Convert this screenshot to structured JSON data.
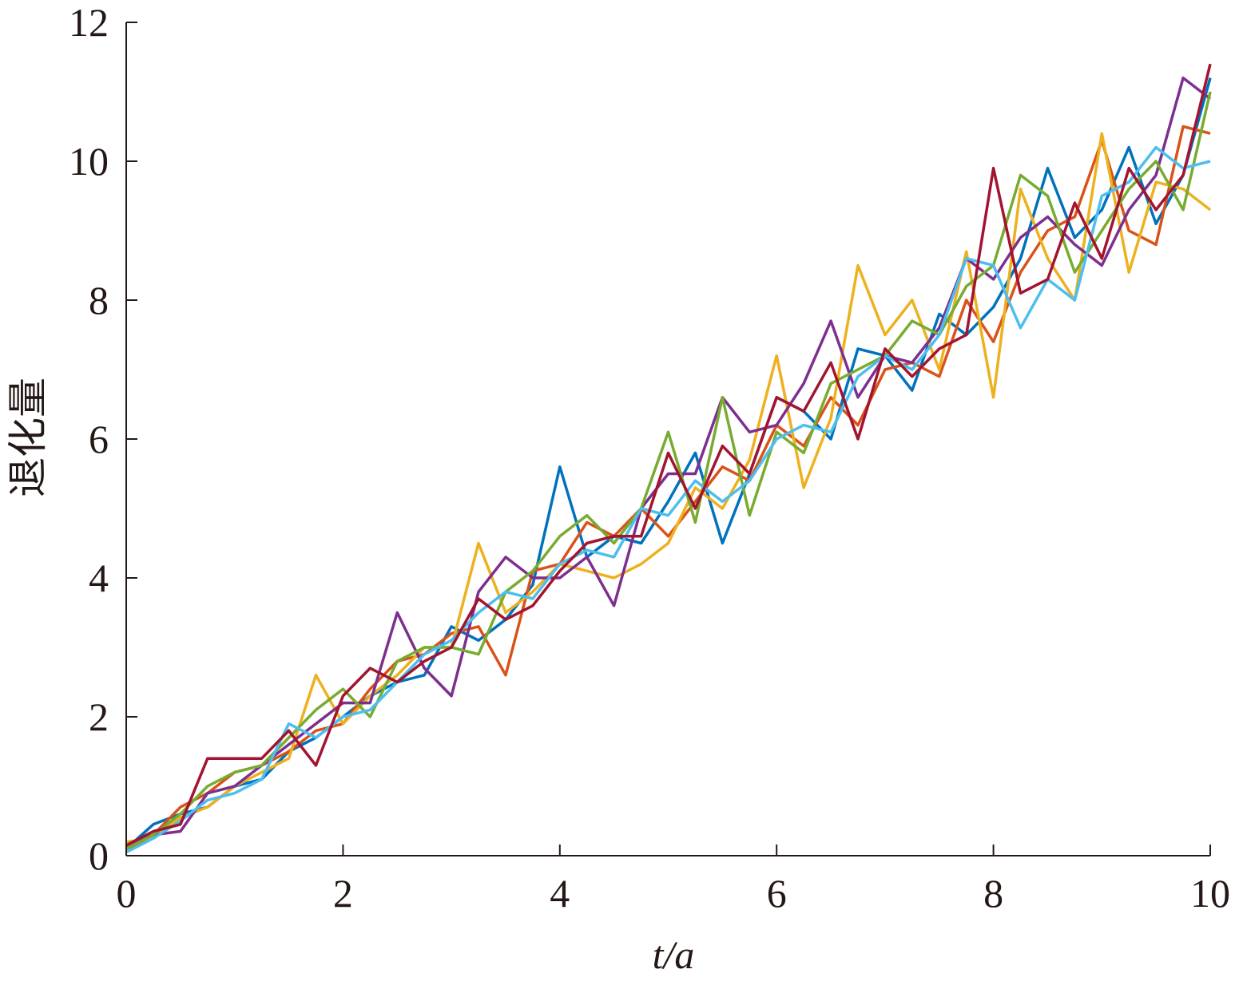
{
  "chart_data": {
    "type": "line",
    "xlabel": "t/a",
    "ylabel": "退化量",
    "x": [
      0,
      0.25,
      0.5,
      0.75,
      1,
      1.25,
      1.5,
      1.75,
      2,
      2.25,
      2.5,
      2.75,
      3,
      3.25,
      3.5,
      3.75,
      4,
      4.25,
      4.5,
      4.75,
      5,
      5.25,
      5.5,
      5.75,
      6,
      6.25,
      6.5,
      6.75,
      7,
      7.25,
      7.5,
      7.75,
      8,
      8.25,
      8.5,
      8.75,
      9,
      9.25,
      9.5,
      9.75,
      10
    ],
    "series": [
      {
        "color": "#0072BD",
        "values": [
          0.1,
          0.45,
          0.6,
          0.7,
          1.0,
          1.1,
          1.5,
          1.7,
          2.0,
          2.3,
          2.5,
          2.6,
          3.3,
          3.1,
          3.4,
          3.9,
          5.6,
          4.3,
          4.6,
          4.5,
          5.1,
          5.8,
          4.5,
          5.5,
          6.6,
          6.4,
          6.0,
          7.3,
          7.2,
          6.7,
          7.8,
          7.5,
          7.9,
          8.6,
          9.9,
          8.9,
          9.3,
          10.2,
          9.1,
          9.8,
          11.2
        ]
      },
      {
        "color": "#D95319",
        "values": [
          0.05,
          0.3,
          0.7,
          0.9,
          1.2,
          1.3,
          1.5,
          1.8,
          1.9,
          2.4,
          2.8,
          2.9,
          3.2,
          3.3,
          2.6,
          4.1,
          4.2,
          4.8,
          4.6,
          5.0,
          4.6,
          5.1,
          5.6,
          5.4,
          6.2,
          5.9,
          6.6,
          6.2,
          7.0,
          7.1,
          6.9,
          8.0,
          7.4,
          8.4,
          9.0,
          9.2,
          10.3,
          9.0,
          8.8,
          10.5,
          10.4
        ]
      },
      {
        "color": "#EDB120",
        "values": [
          0.2,
          0.25,
          0.55,
          0.7,
          1.0,
          1.2,
          1.4,
          2.6,
          1.9,
          2.3,
          2.6,
          3.0,
          3.0,
          4.5,
          3.5,
          3.8,
          4.2,
          4.1,
          4.0,
          4.2,
          4.5,
          5.3,
          5.0,
          5.7,
          7.2,
          5.3,
          6.3,
          8.5,
          7.5,
          8.0,
          7.0,
          8.7,
          6.6,
          9.6,
          8.6,
          8.0,
          10.4,
          8.4,
          9.7,
          9.6,
          9.3
        ]
      },
      {
        "color": "#7E2F8E",
        "values": [
          0.15,
          0.3,
          0.35,
          0.9,
          1.0,
          1.3,
          1.6,
          1.9,
          2.2,
          2.2,
          3.5,
          2.7,
          2.3,
          3.8,
          4.3,
          4.0,
          4.0,
          4.3,
          3.6,
          5.0,
          5.5,
          5.5,
          6.6,
          6.1,
          6.2,
          6.8,
          7.7,
          6.6,
          7.2,
          7.1,
          7.6,
          8.6,
          8.3,
          8.9,
          9.2,
          8.8,
          8.5,
          9.3,
          9.8,
          11.2,
          10.9
        ]
      },
      {
        "color": "#77AC30",
        "values": [
          0.1,
          0.3,
          0.6,
          1.0,
          1.2,
          1.3,
          1.7,
          2.1,
          2.4,
          2.0,
          2.8,
          3.0,
          3.0,
          2.9,
          3.8,
          4.1,
          4.6,
          4.9,
          4.5,
          5.0,
          6.1,
          4.8,
          6.6,
          4.9,
          6.1,
          5.8,
          6.8,
          7.0,
          7.2,
          7.7,
          7.5,
          8.2,
          8.5,
          9.8,
          9.5,
          8.4,
          9.0,
          9.6,
          10.0,
          9.3,
          11.0
        ]
      },
      {
        "color": "#4DBEEE",
        "values": [
          0.05,
          0.25,
          0.5,
          0.8,
          0.9,
          1.1,
          1.9,
          1.7,
          2.0,
          2.1,
          2.5,
          2.9,
          3.1,
          3.5,
          3.8,
          3.7,
          4.2,
          4.4,
          4.3,
          5.0,
          4.9,
          5.4,
          5.1,
          5.4,
          6.0,
          6.2,
          6.1,
          6.9,
          7.2,
          7.0,
          7.5,
          8.6,
          8.5,
          7.6,
          8.3,
          8.0,
          9.5,
          9.7,
          10.2,
          9.9,
          10.0
        ]
      },
      {
        "color": "#A2142F",
        "values": [
          0.15,
          0.35,
          0.45,
          1.4,
          1.4,
          1.4,
          1.8,
          1.3,
          2.3,
          2.7,
          2.5,
          2.8,
          3.0,
          3.7,
          3.4,
          3.6,
          4.1,
          4.5,
          4.6,
          4.6,
          5.8,
          5.0,
          5.9,
          5.5,
          6.6,
          6.4,
          7.1,
          6.0,
          7.3,
          6.9,
          7.3,
          7.5,
          9.9,
          8.1,
          8.3,
          9.4,
          8.6,
          9.9,
          9.3,
          9.8,
          11.4
        ]
      }
    ],
    "xlim": [
      0,
      10
    ],
    "xticks": [
      0,
      2,
      4,
      6,
      8,
      10
    ],
    "ylim": [
      0,
      12
    ],
    "yticks": [
      0,
      2,
      4,
      6,
      8,
      10,
      12
    ]
  }
}
